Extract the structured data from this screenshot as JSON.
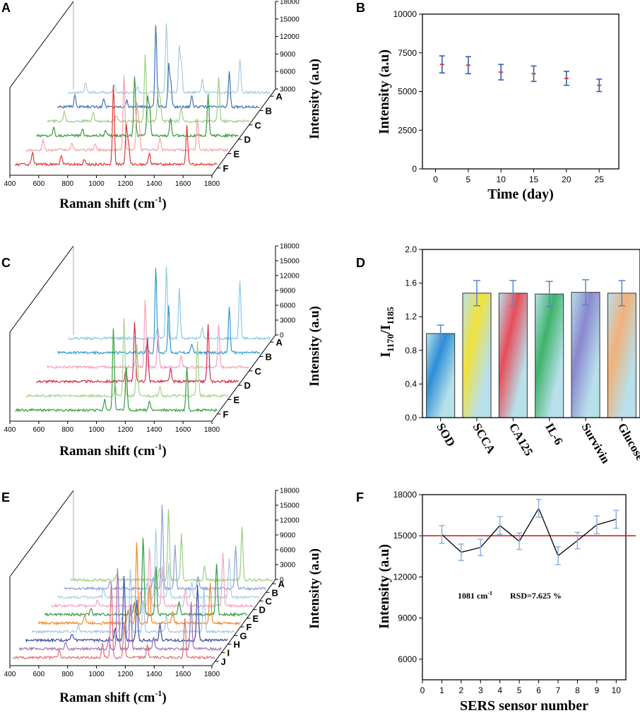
{
  "panels": {
    "A": {
      "letter": "A",
      "type": "waterfall",
      "xlabel": "Raman shift (cm",
      "xlabel_sup": "-1",
      "xlabel_end": ")",
      "ylabel": "Intensity (a.u)",
      "xticks": [
        "400",
        "600",
        "800",
        "1000",
        "1200",
        "1400",
        "1600",
        "1800"
      ],
      "zticks": [
        "3000",
        "6000",
        "9000",
        "12000",
        "15000",
        "18000"
      ],
      "series": [
        "A",
        "B",
        "C",
        "D",
        "E",
        "F"
      ],
      "colors": [
        "#a9cbe3",
        "#3e74b4",
        "#9fce86",
        "#3b9a3b",
        "#f3a5a3",
        "#e03a33"
      ],
      "peaks": [
        {
          "x": 1081,
          "h": 1.0
        },
        {
          "x": 1170,
          "h": 0.55
        },
        {
          "x": 1185,
          "h": 0.35
        },
        {
          "x": 1330,
          "h": 0.2
        },
        {
          "x": 1590,
          "h": 0.55
        },
        {
          "x": 720,
          "h": 0.12
        },
        {
          "x": 520,
          "h": 0.15
        },
        {
          "x": 880,
          "h": 0.08
        }
      ]
    },
    "B": {
      "letter": "B",
      "type": "scatter-errorbar",
      "chart_data": {
        "type": "scatter",
        "title": "",
        "xlabel": "Time (day)",
        "ylabel": "Intensity (a.u)",
        "x": [
          1,
          5,
          10,
          15,
          20,
          25
        ],
        "y": [
          6750,
          6700,
          6250,
          6150,
          5850,
          5400
        ],
        "error": [
          550,
          550,
          500,
          500,
          450,
          400
        ],
        "xlim": [
          -2,
          28
        ],
        "ylim": [
          0,
          10000
        ],
        "xticks": [
          "0",
          "5",
          "10",
          "15",
          "20",
          "25"
        ],
        "yticks": [
          "0",
          "2500",
          "5000",
          "7500",
          "10000"
        ]
      }
    },
    "C": {
      "letter": "C",
      "type": "waterfall",
      "xlabel": "Raman shift (cm",
      "xlabel_sup": "-1",
      "xlabel_end": ")",
      "ylabel": "Intensity (a.u)",
      "xticks": [
        "400",
        "600",
        "800",
        "1000",
        "1200",
        "1400",
        "1600",
        "1800"
      ],
      "zticks": [
        "0",
        "3000",
        "6000",
        "9000",
        "12000",
        "15000",
        "18000"
      ],
      "series": [
        "A",
        "B",
        "C",
        "D",
        "E",
        "F"
      ],
      "colors": [
        "#8cc9e8",
        "#2f9ad0",
        "#f0a3bf",
        "#d4314a",
        "#a6d48c",
        "#3aa043"
      ],
      "peaks": [
        {
          "x": 1081,
          "h": 1.0
        },
        {
          "x": 1170,
          "h": 0.6
        },
        {
          "x": 1590,
          "h": 0.7
        },
        {
          "x": 1330,
          "h": 0.15
        },
        {
          "x": 1020,
          "h": 0.15
        }
      ]
    },
    "D": {
      "letter": "D",
      "type": "bar",
      "chart_data": {
        "type": "bar",
        "title": "",
        "xlabel": "",
        "ylabel": "I1170/I1185",
        "ylabel_main": "I",
        "ylabel_sub1": "1170",
        "ylabel_slash": "/I",
        "ylabel_sub2": "1185",
        "categories": [
          "SOD",
          "SCCA",
          "CA125",
          "IL-6",
          "Survivin",
          "Glucose"
        ],
        "values": [
          1.0,
          1.48,
          1.48,
          1.47,
          1.49,
          1.48
        ],
        "error": [
          0.1,
          0.15,
          0.15,
          0.15,
          0.15,
          0.15
        ],
        "ylim": [
          0,
          2.0
        ],
        "yticks": [
          "0.0",
          "0.4",
          "0.8",
          "1.2",
          "1.6",
          "2.0"
        ],
        "bar_colors": [
          "#2b8fd6",
          "#f2e23c",
          "#e84c5a",
          "#3db36a",
          "#8a87cf",
          "#f2b07a"
        ],
        "bar_base_color": "#b8e0ea"
      }
    },
    "E": {
      "letter": "E",
      "type": "waterfall",
      "xlabel": "Raman shift (cm",
      "xlabel_sup": "-1",
      "xlabel_end": ")",
      "ylabel": "Intensity (a.u)",
      "xticks": [
        "400",
        "600",
        "800",
        "1000",
        "1200",
        "1400",
        "1600",
        "1800"
      ],
      "zticks": [
        "0",
        "3000",
        "6000",
        "9000",
        "12000",
        "15000",
        "18000"
      ],
      "series": [
        "A",
        "B",
        "C",
        "D",
        "E",
        "F",
        "G",
        "H",
        "I",
        "J"
      ],
      "colors": [
        "#9ccd86",
        "#8d9fd6",
        "#a7cfe6",
        "#f2a6c4",
        "#3a9a48",
        "#f08a24",
        "#a8c7e8",
        "#3b4ea0",
        "#a36fb8",
        "#e0717a"
      ],
      "peaks": [
        {
          "x": 1081,
          "h": 1.0
        },
        {
          "x": 1170,
          "h": 0.55
        },
        {
          "x": 1590,
          "h": 0.65
        },
        {
          "x": 1330,
          "h": 0.2
        },
        {
          "x": 1020,
          "h": 0.18
        },
        {
          "x": 720,
          "h": 0.1
        }
      ]
    },
    "F": {
      "letter": "F",
      "type": "line-errorbar",
      "chart_data": {
        "type": "line",
        "title": "",
        "xlabel": "SERS sensor number",
        "ylabel": "Intensity (a.u)",
        "x": [
          1,
          2,
          3,
          4,
          5,
          6,
          7,
          8,
          9,
          10
        ],
        "y": [
          15100,
          13800,
          14150,
          15750,
          14600,
          17000,
          13550,
          14650,
          15800,
          16200
        ],
        "error": [
          650,
          600,
          600,
          650,
          600,
          650,
          650,
          600,
          650,
          650
        ],
        "reference_y": 15000,
        "xlim": [
          0,
          10.5
        ],
        "ylim": [
          4500,
          18000
        ],
        "xticks": [
          "0",
          "1",
          "2",
          "3",
          "4",
          "5",
          "6",
          "7",
          "8",
          "9",
          "10"
        ],
        "yticks": [
          "6000",
          "9000",
          "12000",
          "15000",
          "18000"
        ],
        "annotation_wavenumber": "1081 cm",
        "annotation_sup": "-1",
        "annotation_rsd": "RSD=7.625 %"
      }
    }
  }
}
